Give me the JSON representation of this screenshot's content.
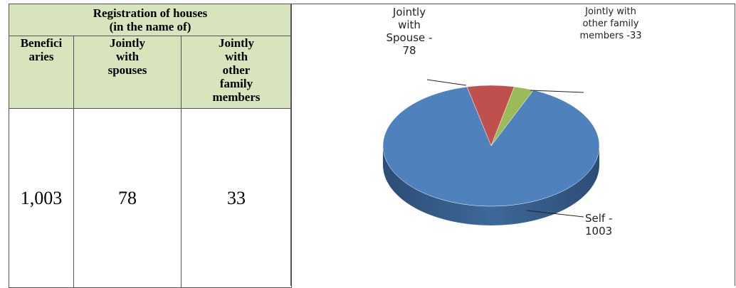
{
  "table": {
    "title": [
      "Registration of houses",
      "(in the name of)"
    ],
    "columns": [
      "Benefici aries",
      "Jointly with spouses",
      "Jointly with other family members"
    ],
    "rows": [
      [
        "1,003",
        "78",
        "33"
      ]
    ]
  },
  "chart_data": {
    "type": "pie",
    "values": [
      1003,
      78,
      33
    ],
    "value_labels": [
      "Self - 1003",
      "Jointly with Spouse - 78",
      "Jointly with other family members -33"
    ],
    "colors": [
      "#4f81bd",
      "#c0504d",
      "#9bbb59"
    ]
  }
}
